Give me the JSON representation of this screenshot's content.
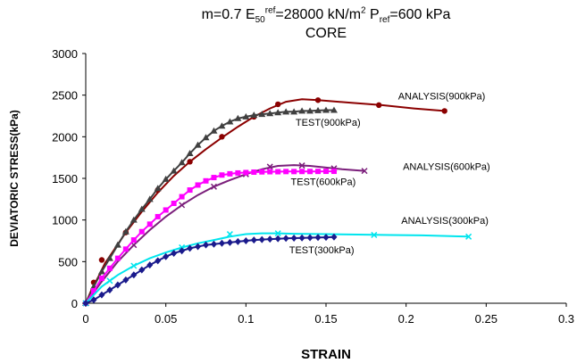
{
  "chart_data": {
    "type": "line",
    "title": {
      "m": "m=0.7",
      "e_base": "E",
      "e_sub": "50",
      "e_sup": "ref",
      "e_value": "=28000 kN/m",
      "e_unit_sup": "2",
      "p_base": "P",
      "p_sub": "ref",
      "p_value": "=600 kPa"
    },
    "subtitle": "CORE",
    "xlabel": "STRAIN",
    "ylabel": "DEVIATORIC STRESS(kPa)",
    "xlim": [
      0,
      0.3
    ],
    "ylim": [
      0,
      3000
    ],
    "xticks": [
      "0",
      "0.05",
      "0.1",
      "0.15",
      "0.2",
      "0.25",
      "0.3"
    ],
    "xtick_values": [
      0,
      0.05,
      0.1,
      0.15,
      0.2,
      0.25,
      0.3
    ],
    "yticks": [
      "0",
      "500",
      "1000",
      "1500",
      "2000",
      "2500",
      "3000"
    ],
    "ytick_values": [
      0,
      500,
      1000,
      1500,
      2000,
      2500,
      3000
    ],
    "grid": false,
    "legend": "none",
    "series": [
      {
        "name": "ANALYSIS(900kPa)",
        "color": "#8b0000",
        "marker": "circle",
        "x": [
          0,
          0.004,
          0.008,
          0.012,
          0.018,
          0.025,
          0.035,
          0.045,
          0.055,
          0.065,
          0.075,
          0.085,
          0.095,
          0.105,
          0.115,
          0.125,
          0.135,
          0.145,
          0.165,
          0.185,
          0.205,
          0.224
        ],
        "y": [
          0,
          180,
          320,
          480,
          650,
          850,
          1100,
          1330,
          1530,
          1700,
          1850,
          1990,
          2120,
          2240,
          2340,
          2420,
          2450,
          2440,
          2410,
          2380,
          2340,
          2310
        ],
        "marked_x": [
          0,
          0.005,
          0.01,
          0.025,
          0.045,
          0.065,
          0.085,
          0.105,
          0.12,
          0.145,
          0.183,
          0.224
        ],
        "marked_y": [
          0,
          250,
          520,
          850,
          1360,
          1700,
          2000,
          2240,
          2390,
          2440,
          2380,
          2310
        ]
      },
      {
        "name": "TEST(900kPa)",
        "color": "#404040",
        "marker": "triangle",
        "x": [
          0,
          0.005,
          0.01,
          0.015,
          0.02,
          0.025,
          0.03,
          0.035,
          0.04,
          0.045,
          0.05,
          0.055,
          0.06,
          0.065,
          0.07,
          0.075,
          0.08,
          0.085,
          0.09,
          0.095,
          0.1,
          0.105,
          0.11,
          0.115,
          0.12,
          0.125,
          0.13,
          0.135,
          0.14,
          0.145,
          0.15,
          0.155
        ],
        "y": [
          0,
          200,
          380,
          540,
          700,
          860,
          1000,
          1130,
          1250,
          1380,
          1490,
          1590,
          1690,
          1800,
          1900,
          1990,
          2070,
          2130,
          2180,
          2220,
          2240,
          2260,
          2270,
          2280,
          2290,
          2300,
          2300,
          2310,
          2310,
          2315,
          2320,
          2320
        ]
      },
      {
        "name": "ANALYSIS(600kPa)",
        "color": "#7b1f7b",
        "marker": "x",
        "x": [
          0,
          0.01,
          0.02,
          0.03,
          0.04,
          0.05,
          0.06,
          0.07,
          0.08,
          0.09,
          0.1,
          0.11,
          0.12,
          0.13,
          0.14,
          0.15,
          0.16,
          0.174
        ],
        "y": [
          0,
          260,
          500,
          700,
          880,
          1040,
          1180,
          1300,
          1400,
          1480,
          1550,
          1610,
          1650,
          1660,
          1650,
          1630,
          1610,
          1590
        ],
        "marked_x": [
          0,
          0.03,
          0.06,
          0.08,
          0.1,
          0.115,
          0.135,
          0.155,
          0.174
        ],
        "marked_y": [
          0,
          700,
          1180,
          1400,
          1550,
          1640,
          1655,
          1620,
          1590
        ]
      },
      {
        "name": "TEST(600kPa)",
        "color": "#ff00ff",
        "marker": "square",
        "x": [
          0,
          0.005,
          0.01,
          0.015,
          0.02,
          0.025,
          0.03,
          0.035,
          0.04,
          0.045,
          0.05,
          0.055,
          0.06,
          0.065,
          0.07,
          0.075,
          0.08,
          0.085,
          0.09,
          0.095,
          0.1,
          0.105,
          0.11,
          0.115,
          0.12,
          0.125,
          0.13,
          0.135,
          0.14,
          0.145,
          0.15,
          0.155
        ],
        "y": [
          0,
          150,
          300,
          420,
          540,
          650,
          760,
          860,
          950,
          1040,
          1120,
          1200,
          1280,
          1360,
          1420,
          1470,
          1510,
          1540,
          1555,
          1565,
          1570,
          1575,
          1578,
          1580,
          1580,
          1582,
          1582,
          1583,
          1583,
          1584,
          1585,
          1585
        ]
      },
      {
        "name": "ANALYSIS(300kPa)",
        "color": "#00e5ee",
        "marker": "x",
        "x": [
          0,
          0.01,
          0.02,
          0.03,
          0.04,
          0.05,
          0.06,
          0.07,
          0.08,
          0.09,
          0.1,
          0.11,
          0.12,
          0.13,
          0.15,
          0.17,
          0.19,
          0.21,
          0.239
        ],
        "y": [
          0,
          200,
          340,
          450,
          540,
          610,
          670,
          720,
          760,
          800,
          830,
          840,
          840,
          835,
          830,
          825,
          820,
          815,
          800
        ],
        "marked_x": [
          0,
          0.015,
          0.03,
          0.06,
          0.09,
          0.12,
          0.18,
          0.239
        ],
        "marked_y": [
          0,
          270,
          450,
          670,
          830,
          840,
          820,
          800
        ]
      },
      {
        "name": "TEST(300kPa)",
        "color": "#1a1a8c",
        "marker": "diamond",
        "x": [
          0,
          0.005,
          0.01,
          0.015,
          0.02,
          0.025,
          0.03,
          0.035,
          0.04,
          0.045,
          0.05,
          0.055,
          0.06,
          0.065,
          0.07,
          0.075,
          0.08,
          0.085,
          0.09,
          0.095,
          0.1,
          0.105,
          0.11,
          0.115,
          0.12,
          0.125,
          0.13,
          0.135,
          0.14,
          0.145,
          0.15,
          0.155
        ],
        "y": [
          0,
          40,
          100,
          160,
          220,
          280,
          340,
          400,
          460,
          510,
          560,
          600,
          630,
          660,
          680,
          700,
          710,
          720,
          730,
          740,
          750,
          760,
          765,
          770,
          775,
          780,
          782,
          785,
          787,
          790,
          792,
          795
        ]
      }
    ],
    "annotations": [
      {
        "text": "ANALYSIS(900kPa)",
        "x": 0.195,
        "y": 2450
      },
      {
        "text": "TEST(900kPa)",
        "x": 0.131,
        "y": 2130
      },
      {
        "text": "ANALYSIS(600kPa)",
        "x": 0.198,
        "y": 1600
      },
      {
        "text": "TEST(600kPa)",
        "x": 0.128,
        "y": 1420
      },
      {
        "text": "ANALYSIS(300kPa)",
        "x": 0.197,
        "y": 955
      },
      {
        "text": "TEST(300kPa)",
        "x": 0.127,
        "y": 600
      }
    ]
  }
}
